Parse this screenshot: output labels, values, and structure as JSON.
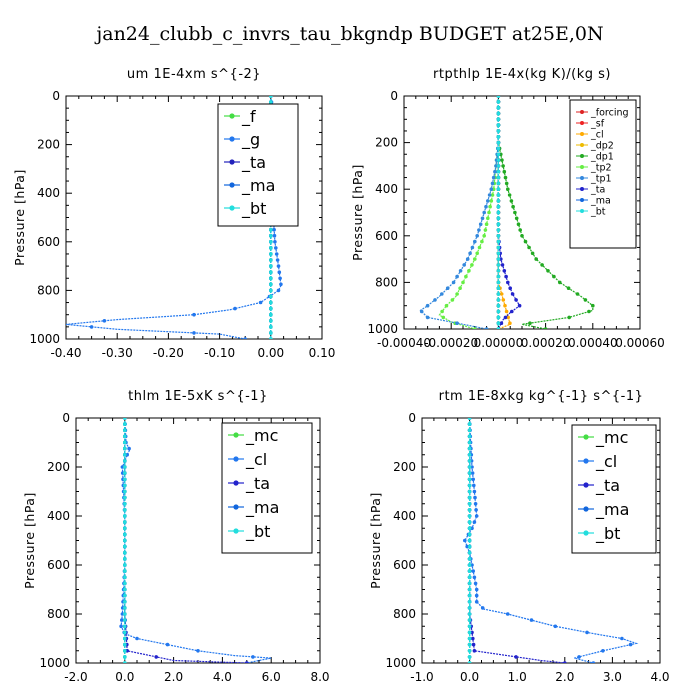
{
  "suptitle": "jan24_clubb_c_invrs_tau_bkgndp  BUDGET at25E,0N",
  "chart_data": [
    {
      "type": "line",
      "title": "um   1E-4xm s^{-2}",
      "ylabel": "Pressure [hPa]",
      "xlim": [
        -0.4,
        0.1
      ],
      "ylim": [
        1000,
        0
      ],
      "xticks": [
        "-0.40",
        "-0.30",
        "-0.20",
        "-0.10",
        "0.00",
        "0.10"
      ],
      "xtick_values": [
        -0.4,
        -0.3,
        -0.2,
        -0.1,
        0.0,
        0.1
      ],
      "yticks": [
        "0",
        "200",
        "400",
        "600",
        "800",
        "1000"
      ],
      "ytick_values": [
        0,
        200,
        400,
        600,
        800,
        1000
      ],
      "legend_position": "top-right",
      "series": [
        {
          "name": "_f",
          "color": "#44dd44",
          "p": [
            0,
            100,
            200,
            300,
            400,
            500,
            600,
            700,
            800,
            900,
            1000
          ],
          "values": [
            0,
            0,
            0,
            0,
            0,
            0,
            0,
            0,
            0,
            0,
            0
          ]
        },
        {
          "name": "_g",
          "color": "#2277ee",
          "p": [
            0,
            90,
            120,
            140,
            150,
            160,
            200,
            300,
            400,
            500,
            600,
            700,
            780,
            800,
            850,
            880,
            900,
            920,
            940,
            960,
            980,
            1000
          ],
          "values": [
            0,
            0.005,
            0.02,
            0.035,
            0.03,
            0.01,
            0.005,
            0.005,
            0.003,
            0.005,
            0.008,
            0.015,
            0.02,
            0.015,
            -0.02,
            -0.08,
            -0.15,
            -0.3,
            -0.4,
            -0.3,
            -0.1,
            -0.05
          ]
        },
        {
          "name": "_ta",
          "color": "#2222bb",
          "p": [
            0,
            200,
            400,
            600,
            800,
            1000
          ],
          "values": [
            0,
            0,
            0,
            0,
            0,
            0
          ]
        },
        {
          "name": "_ma",
          "color": "#1166dd",
          "p": [
            0,
            200,
            400,
            600,
            800,
            1000
          ],
          "values": [
            0,
            0,
            0,
            0,
            0,
            0
          ]
        },
        {
          "name": "_bt",
          "color": "#22dddd",
          "p": [
            0,
            100,
            200,
            300,
            400,
            500,
            600,
            700,
            800,
            900,
            1000
          ],
          "values": [
            0,
            0,
            0,
            0,
            0,
            0,
            0,
            0,
            0,
            0,
            0
          ]
        }
      ]
    },
    {
      "type": "line",
      "title": "rtpthlp   1E-4x(kg K)/(kg s)",
      "ylabel": "Pressure [hPa]",
      "xlim": [
        -0.0004,
        0.0006
      ],
      "ylim": [
        1000,
        0
      ],
      "xticks": [
        "-0.00040",
        "-0.00020",
        "0.00000",
        "0.00020",
        "0.00040",
        "0.00060"
      ],
      "xtick_values": [
        -0.0004,
        -0.0002,
        0.0,
        0.0002,
        0.0004,
        0.0006
      ],
      "yticks": [
        "0",
        "200",
        "400",
        "600",
        "800",
        "1000"
      ],
      "ytick_values": [
        0,
        200,
        400,
        600,
        800,
        1000
      ],
      "legend_position": "top-right",
      "series": [
        {
          "name": "_forcing",
          "color": "#dd2222",
          "p": [
            0,
            200,
            400,
            600,
            800,
            1000
          ],
          "values": [
            0,
            0,
            0,
            0,
            0,
            0
          ]
        },
        {
          "name": "_sf",
          "color": "#ee2222",
          "p": [
            0,
            200,
            400,
            600,
            800,
            1000
          ],
          "values": [
            0,
            0,
            0,
            0,
            0,
            0
          ]
        },
        {
          "name": "_cl",
          "color": "#ffaa00",
          "p": [
            0,
            200,
            400,
            600,
            800,
            980,
            1000
          ],
          "values": [
            0,
            0,
            0,
            0,
            0,
            5e-05,
            0
          ]
        },
        {
          "name": "_dp2",
          "color": "#eebb00",
          "p": [
            0,
            200,
            400,
            600,
            800,
            1000
          ],
          "values": [
            0,
            0,
            0,
            0,
            0,
            0
          ]
        },
        {
          "name": "_dp1",
          "color": "#22aa22",
          "p": [
            0,
            200,
            300,
            400,
            500,
            600,
            700,
            800,
            860,
            900,
            920,
            950,
            980,
            1000
          ],
          "values": [
            0,
            0,
            2e-05,
            4e-05,
            7e-05,
            0.0001,
            0.00016,
            0.00026,
            0.00035,
            0.0004,
            0.0004,
            0.0003,
            0.0001,
            0.0002
          ]
        },
        {
          "name": "_tp2",
          "color": "#66ee44",
          "p": [
            0,
            200,
            300,
            400,
            500,
            600,
            700,
            800,
            860,
            900,
            940,
            970,
            1000
          ],
          "values": [
            0,
            0,
            -1e-05,
            -2e-05,
            -4e-05,
            -6e-05,
            -0.0001,
            -0.00015,
            -0.00018,
            -0.00022,
            -0.00025,
            -0.0002,
            -0.0001
          ]
        },
        {
          "name": "_tp1",
          "color": "#3388dd",
          "p": [
            0,
            200,
            300,
            400,
            500,
            600,
            700,
            800,
            860,
            900,
            920,
            950,
            980,
            1000
          ],
          "values": [
            0,
            0,
            -1e-05,
            -3e-05,
            -6e-05,
            -9e-05,
            -0.00013,
            -0.00019,
            -0.00025,
            -0.0003,
            -0.00033,
            -0.0003,
            -0.00015,
            -5e-05
          ]
        },
        {
          "name": "_ta",
          "color": "#2222cc",
          "p": [
            0,
            600,
            700,
            800,
            850,
            900,
            930,
            960,
            1000
          ],
          "values": [
            0,
            0,
            1e-05,
            4e-05,
            6e-05,
            9e-05,
            5e-05,
            2e-05,
            0
          ]
        },
        {
          "name": "_ma",
          "color": "#1166dd",
          "p": [
            0,
            200,
            400,
            600,
            800,
            1000
          ],
          "values": [
            0,
            0,
            0,
            0,
            0,
            0
          ]
        },
        {
          "name": "_bt",
          "color": "#22dddd",
          "p": [
            0,
            200,
            400,
            600,
            800,
            1000
          ],
          "values": [
            0,
            0,
            0,
            0,
            0,
            0
          ]
        }
      ]
    },
    {
      "type": "line",
      "title": "thlm   1E-5xK s^{-1}",
      "ylabel": "Pressure [hPa]",
      "xlim": [
        -2.0,
        8.0
      ],
      "ylim": [
        1000,
        0
      ],
      "xticks": [
        "-2.0",
        "0.0",
        "2.0",
        "4.0",
        "6.0",
        "8.0"
      ],
      "xtick_values": [
        -2,
        0,
        2,
        4,
        6,
        8
      ],
      "yticks": [
        "0",
        "200",
        "400",
        "600",
        "800",
        "1000"
      ],
      "ytick_values": [
        0,
        200,
        400,
        600,
        800,
        1000
      ],
      "legend_position": "top-right",
      "series": [
        {
          "name": "_mc",
          "color": "#44dd44",
          "p": [
            0,
            100,
            200,
            300,
            400,
            500,
            600,
            700,
            800,
            900,
            1000
          ],
          "values": [
            0,
            0,
            0,
            0,
            0,
            0,
            0,
            0,
            0,
            0,
            0
          ]
        },
        {
          "name": "_cl",
          "color": "#2277ee",
          "p": [
            0,
            100,
            130,
            150,
            200,
            300,
            400,
            500,
            600,
            700,
            800,
            850,
            880,
            900,
            920,
            950,
            970,
            980,
            990,
            1000
          ],
          "values": [
            0,
            0.05,
            0.2,
            0.1,
            -0.1,
            -0.05,
            0.0,
            0.0,
            0.0,
            -0.05,
            -0.1,
            -0.15,
            0.0,
            0.5,
            1.5,
            3.0,
            4.5,
            6.0,
            5.5,
            5.0
          ]
        },
        {
          "name": "_ta",
          "color": "#2222cc",
          "p": [
            0,
            600,
            800,
            950,
            990,
            1000
          ],
          "values": [
            0,
            0,
            0,
            0.1,
            2.0,
            5.0
          ]
        },
        {
          "name": "_ma",
          "color": "#1166dd",
          "p": [
            0,
            200,
            400,
            600,
            800,
            1000
          ],
          "values": [
            0,
            0,
            0,
            0,
            0,
            0
          ]
        },
        {
          "name": "_bt",
          "color": "#22dddd",
          "p": [
            0,
            100,
            200,
            300,
            400,
            500,
            600,
            700,
            800,
            900,
            1000
          ],
          "values": [
            0,
            0,
            0,
            0,
            0,
            0,
            0,
            0,
            0,
            0,
            0
          ]
        }
      ]
    },
    {
      "type": "line",
      "title": "rtm   1E-8xkg kg^{-1} s^{-1}",
      "ylabel": "Pressure [hPa]",
      "xlim": [
        -1.0,
        4.0
      ],
      "ylim": [
        1000,
        0
      ],
      "xticks": [
        "-1.0",
        "0.0",
        "1.0",
        "2.0",
        "3.0",
        "4.0"
      ],
      "xtick_values": [
        -1,
        0,
        1,
        2,
        3,
        4
      ],
      "yticks": [
        "0",
        "200",
        "400",
        "600",
        "800",
        "1000"
      ],
      "ytick_values": [
        0,
        200,
        400,
        600,
        800,
        1000
      ],
      "legend_position": "top-right",
      "series": [
        {
          "name": "_mc",
          "color": "#44dd44",
          "p": [
            0,
            100,
            200,
            300,
            400,
            500,
            600,
            700,
            800,
            900,
            1000
          ],
          "values": [
            0,
            0,
            0,
            0,
            0,
            0,
            0,
            0,
            0,
            0,
            0
          ]
        },
        {
          "name": "_cl",
          "color": "#2277ee",
          "p": [
            0,
            100,
            200,
            300,
            400,
            450,
            500,
            550,
            600,
            650,
            700,
            750,
            780,
            800,
            850,
            880,
            900,
            920,
            950,
            980,
            1000
          ],
          "values": [
            0,
            0.02,
            0.05,
            0.1,
            0.15,
            0.05,
            -0.1,
            0.0,
            0.05,
            0.1,
            0.15,
            0.15,
            0.3,
            0.8,
            1.8,
            2.6,
            3.2,
            3.5,
            2.8,
            2.2,
            2.6
          ]
        },
        {
          "name": "_ta",
          "color": "#2222cc",
          "p": [
            0,
            600,
            800,
            950,
            990,
            1000
          ],
          "values": [
            0,
            0,
            0,
            0.1,
            1.5,
            2.0
          ]
        },
        {
          "name": "_ma",
          "color": "#1166dd",
          "p": [
            0,
            200,
            400,
            600,
            800,
            1000
          ],
          "values": [
            0,
            0,
            0,
            0,
            0,
            0
          ]
        },
        {
          "name": "_bt",
          "color": "#22dddd",
          "p": [
            0,
            100,
            200,
            300,
            400,
            500,
            600,
            700,
            800,
            900,
            1000
          ],
          "values": [
            0,
            0,
            0,
            0,
            0,
            0,
            0,
            0,
            0,
            0,
            0
          ]
        }
      ]
    }
  ]
}
